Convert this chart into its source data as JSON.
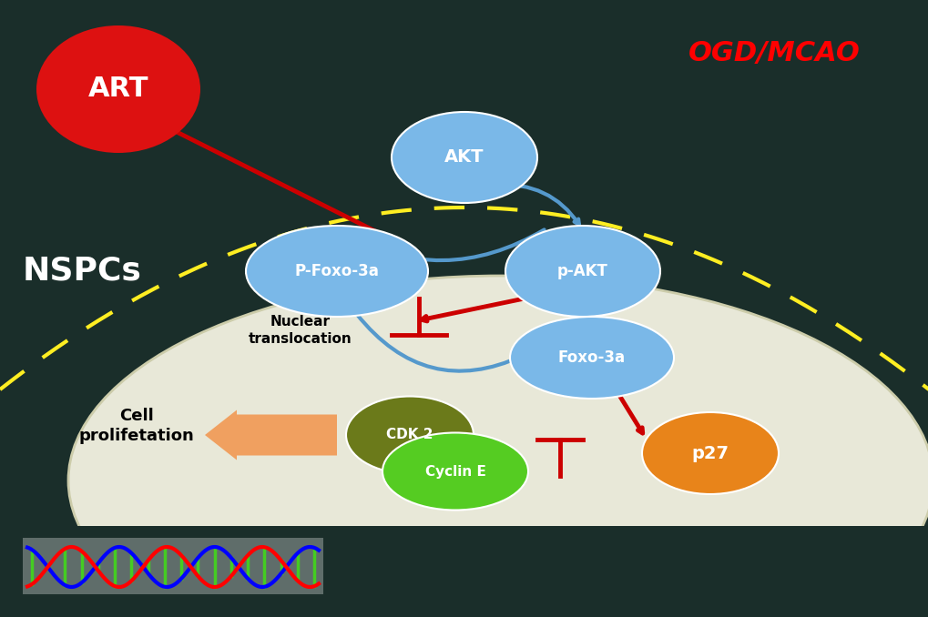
{
  "bg_color": "#1a2e2a",
  "cell_bg": "#e8e8d8",
  "title_ogd": "OGD/MCAO",
  "title_ogd_color": "#ff0000",
  "title_nspc": "NSPCs",
  "title_nspc_color": "#ffffff",
  "art_color": "#dd1111",
  "art_text": "ART",
  "akt_ellipse_color": "#7ab8e8",
  "akt_text": "AKT",
  "pakt_text": "p-AKT",
  "pfoxo_text": "P-Foxo-3a",
  "foxo3a_text": "Foxo-3a",
  "cdk2_text": "CDK 2",
  "cdk2_color": "#6b7a1a",
  "cycline_text": "Cyclin E",
  "cycline_color": "#55cc22",
  "p27_text": "p27",
  "p27_color": "#e8841a",
  "nuclear_text": "Nuclear\ntranslocation",
  "cell_prolif_text": "Cell\nprolifetation",
  "dashed_color": "#ffee22",
  "red_arrow_color": "#cc0000",
  "blue_arrow_color": "#5599cc",
  "orange_arrow_color": "#f0a060"
}
